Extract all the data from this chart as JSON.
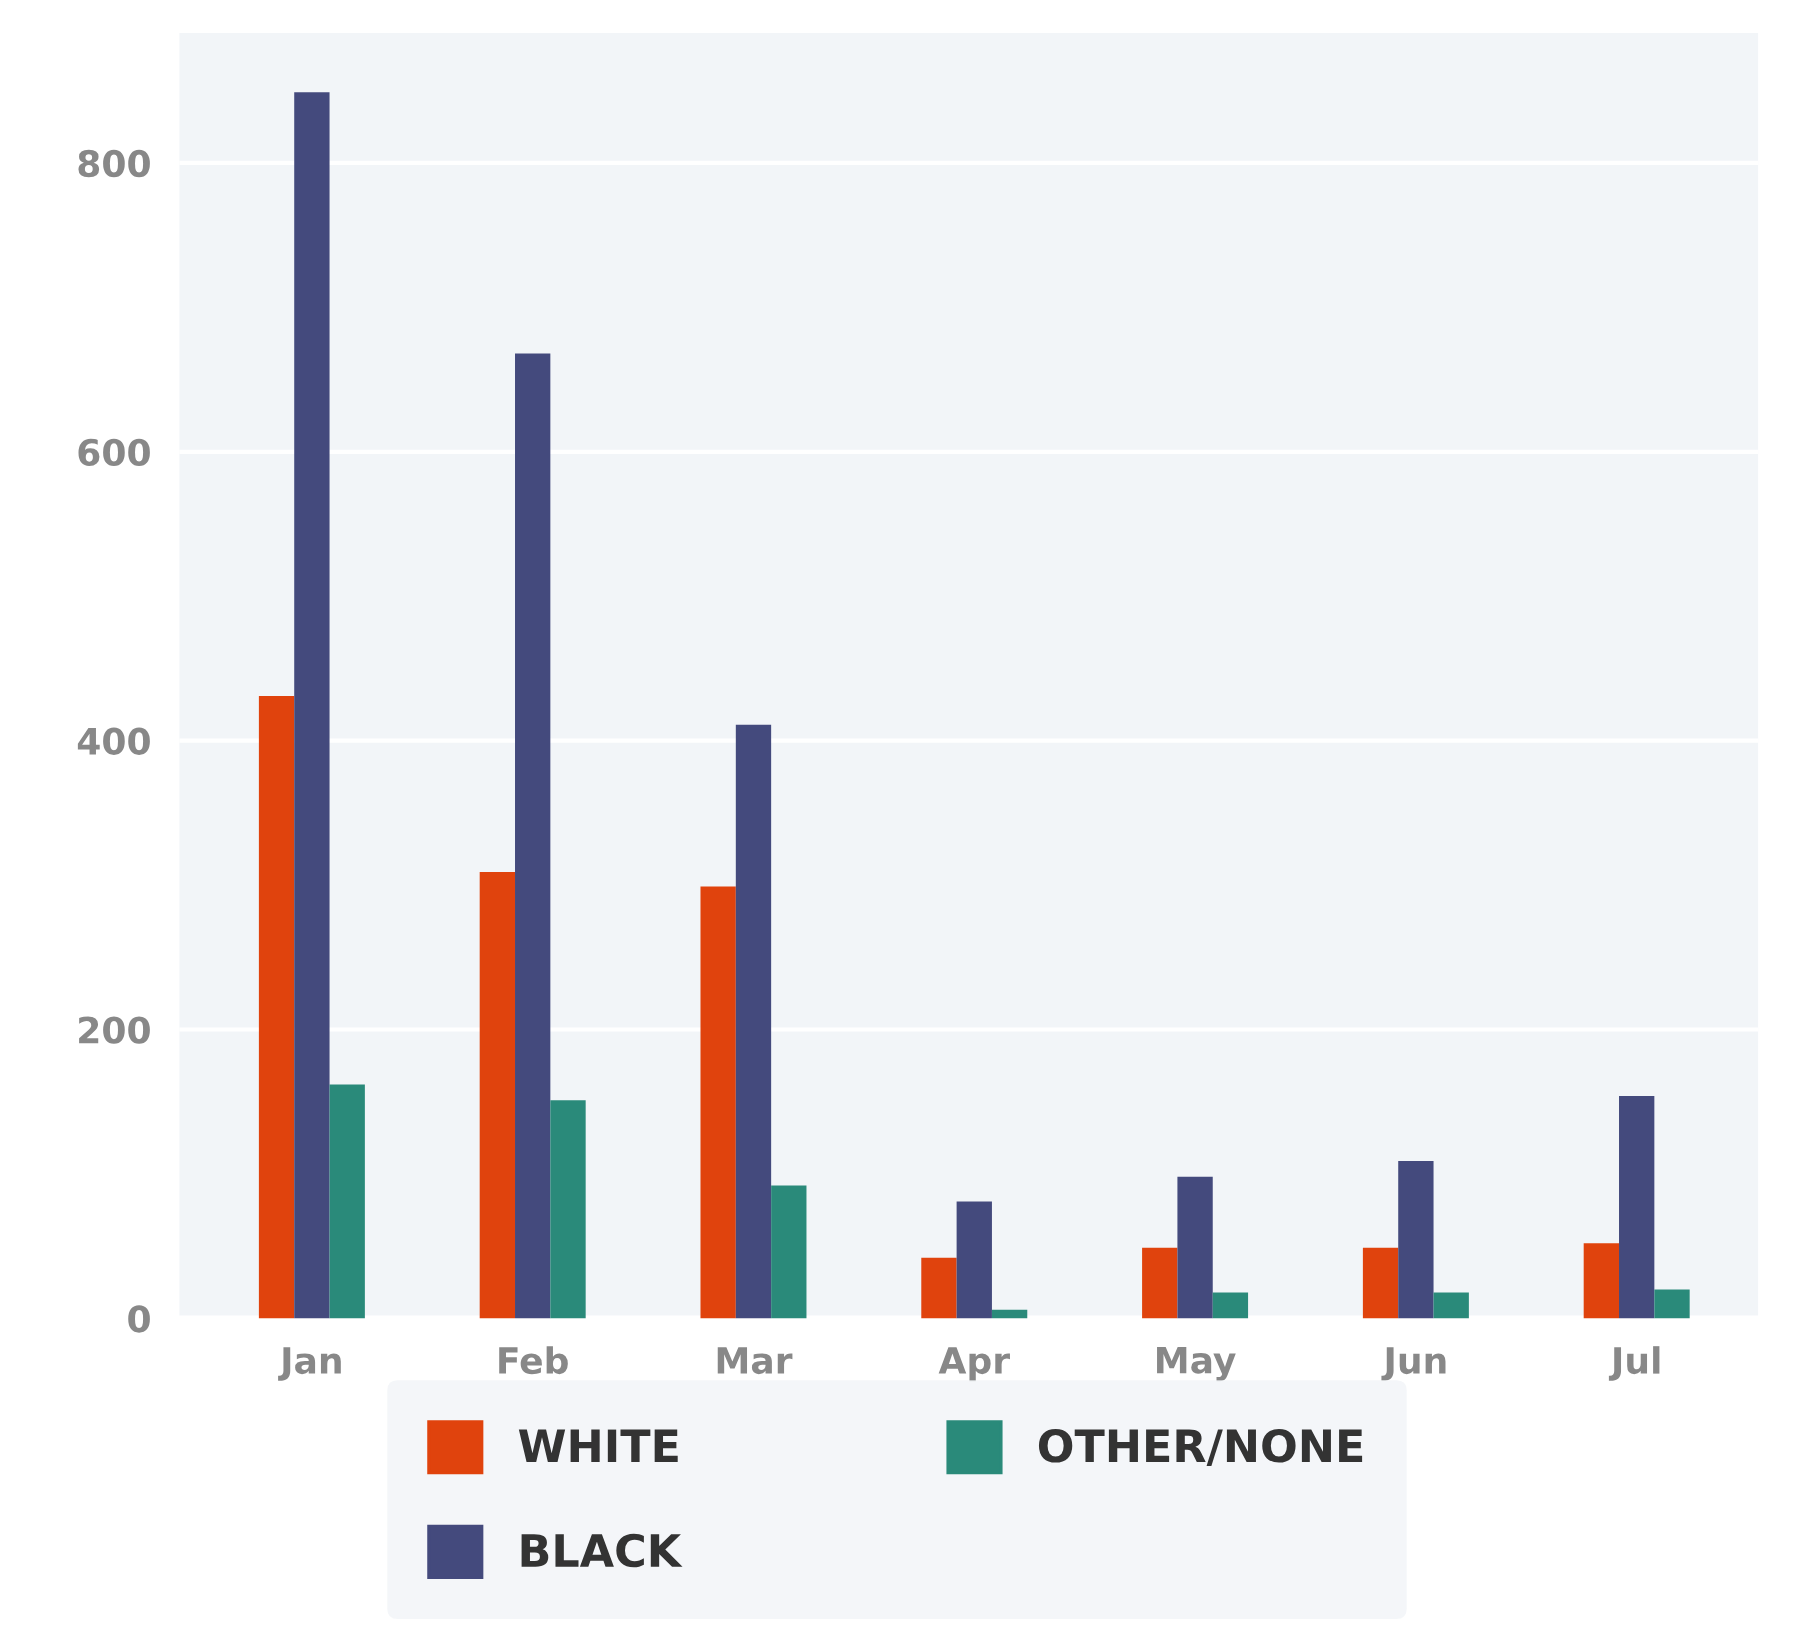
{
  "chart_data": {
    "type": "bar",
    "categories": [
      "Jan",
      "Feb",
      "Mar",
      "Apr",
      "May",
      "Jun",
      "Jul"
    ],
    "series": [
      {
        "name": "WHITE",
        "color": "#e0430d",
        "values": [
          431,
          309,
          299,
          42,
          49,
          49,
          52
        ]
      },
      {
        "name": "BLACK",
        "color": "#444a7d",
        "values": [
          849,
          668,
          411,
          81,
          98,
          109,
          154
        ]
      },
      {
        "name": "OTHER/NONE",
        "color": "#2a8a7a",
        "values": [
          162,
          151,
          92,
          6,
          18,
          18,
          20
        ]
      }
    ],
    "ylim": [
      0,
      890
    ],
    "yticks": [
      0,
      200,
      400,
      600,
      800
    ],
    "grid": "y",
    "legend": "bottom"
  }
}
